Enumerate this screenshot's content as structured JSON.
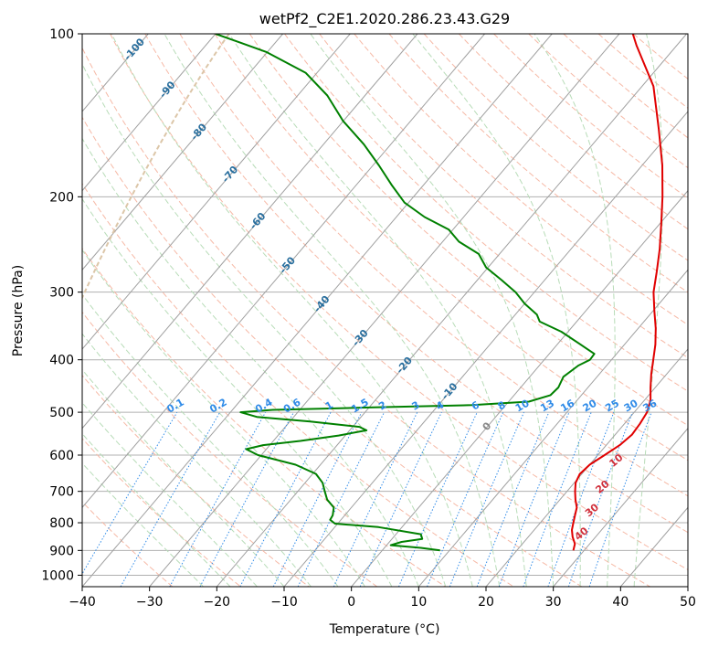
{
  "chart_data": {
    "type": "line",
    "subtype": "skew-T log-P diagram",
    "title": "wetPf2_C2E1.2020.286.23.43.G29",
    "xlabel": "Temperature (°C)",
    "ylabel": "Pressure (hPa)",
    "xlim": [
      -40,
      50
    ],
    "ylim": [
      1050,
      100
    ],
    "yscale": "log",
    "x_ticks": [
      -40,
      -30,
      -20,
      -10,
      0,
      10,
      20,
      30,
      40,
      50
    ],
    "y_ticks": [
      100,
      200,
      300,
      400,
      500,
      600,
      700,
      800,
      900,
      1000
    ],
    "grid": true,
    "colors": {
      "temperature": "#e00000",
      "dewpoint": "#008000",
      "isotherm": "#a0a0a0",
      "dry_adiabat": "#f6b9a6",
      "moist_adiabat": "#b8dcb8",
      "mixing_ratio": "#2f8be8",
      "dry_adiabat_label": "#d0303c",
      "isotherm_label": "#2a6f9e",
      "zero_label": "#888888",
      "rh_curve": "#dcc6a8"
    },
    "series": [
      {
        "key": "temperature",
        "points": [
          [
            28.4,
            900
          ],
          [
            27.8,
            875
          ],
          [
            26.6,
            850
          ],
          [
            25.6,
            825
          ],
          [
            24.9,
            800
          ],
          [
            24.2,
            775
          ],
          [
            23.5,
            750
          ],
          [
            22.3,
            725
          ],
          [
            21.2,
            700
          ],
          [
            20.2,
            675
          ],
          [
            19.7,
            650
          ],
          [
            20.0,
            625
          ],
          [
            21.0,
            600
          ],
          [
            22.0,
            575
          ],
          [
            22.5,
            550
          ],
          [
            22.3,
            525
          ],
          [
            21.9,
            500
          ],
          [
            20.9,
            475
          ],
          [
            19.3,
            450
          ],
          [
            17.7,
            425
          ],
          [
            16.2,
            400
          ],
          [
            14.6,
            375
          ],
          [
            12.6,
            350
          ],
          [
            10.2,
            325
          ],
          [
            7.7,
            300
          ],
          [
            5.6,
            275
          ],
          [
            3.2,
            250
          ],
          [
            0.3,
            225
          ],
          [
            -3.0,
            200
          ],
          [
            -7.0,
            175
          ],
          [
            -12.1,
            150
          ],
          [
            -18.3,
            125
          ],
          [
            -26.0,
            105
          ],
          [
            -28.0,
            100
          ]
        ]
      },
      {
        "key": "dewpoint",
        "points": [
          [
            8.6,
            900
          ],
          [
            5.4,
            890
          ],
          [
            0.6,
            880
          ],
          [
            1.8,
            868
          ],
          [
            4.5,
            857
          ],
          [
            3.7,
            840
          ],
          [
            -3.5,
            815
          ],
          [
            -10.4,
            803
          ],
          [
            -11.6,
            790
          ],
          [
            -11.8,
            775
          ],
          [
            -12.6,
            750
          ],
          [
            -14.6,
            725
          ],
          [
            -16.0,
            700
          ],
          [
            -17.4,
            675
          ],
          [
            -19.5,
            650
          ],
          [
            -23.7,
            625
          ],
          [
            -30.5,
            600
          ],
          [
            -33.0,
            585
          ],
          [
            -31.0,
            575
          ],
          [
            -26.0,
            565
          ],
          [
            -21.0,
            552
          ],
          [
            -17.5,
            540
          ],
          [
            -19.0,
            532
          ],
          [
            -27.0,
            520
          ],
          [
            -35.5,
            510
          ],
          [
            -38.5,
            500
          ],
          [
            -34.0,
            495
          ],
          [
            -20.0,
            490
          ],
          [
            -5.0,
            485
          ],
          [
            3.0,
            478
          ],
          [
            5.4,
            465
          ],
          [
            5.6,
            450
          ],
          [
            5.0,
            430
          ],
          [
            5.8,
            410
          ],
          [
            6.8,
            400
          ],
          [
            6.7,
            390
          ],
          [
            3.5,
            375
          ],
          [
            -1.0,
            355
          ],
          [
            -5.5,
            340
          ],
          [
            -6.8,
            330
          ],
          [
            -10.0,
            315
          ],
          [
            -12.8,
            300
          ],
          [
            -16.4,
            285
          ],
          [
            -20.3,
            270
          ],
          [
            -23.1,
            255
          ],
          [
            -27.6,
            242
          ],
          [
            -30.6,
            230
          ],
          [
            -35.8,
            218
          ],
          [
            -40.6,
            205
          ],
          [
            -44.8,
            190
          ],
          [
            -49.1,
            175
          ],
          [
            -54.0,
            160
          ],
          [
            -60.0,
            145
          ],
          [
            -65.6,
            130
          ],
          [
            -71.7,
            118
          ],
          [
            -80.2,
            108
          ],
          [
            -85.0,
            104
          ],
          [
            -90.0,
            100
          ]
        ]
      }
    ],
    "isotherm_labels": [
      {
        "text": "-100",
        "t": -100,
        "p": 107
      },
      {
        "text": "-90",
        "t": -90,
        "p": 127
      },
      {
        "text": "-80",
        "t": -80,
        "p": 152
      },
      {
        "text": "-70",
        "t": -70,
        "p": 182
      },
      {
        "text": "-60",
        "t": -60,
        "p": 222
      },
      {
        "text": "-50",
        "t": -50,
        "p": 268
      },
      {
        "text": "-40",
        "t": -40,
        "p": 316
      },
      {
        "text": "-30",
        "t": -30,
        "p": 365
      },
      {
        "text": "-20",
        "t": -20,
        "p": 410
      },
      {
        "text": "-10",
        "t": -10,
        "p": 458
      },
      {
        "text": "0",
        "t": 0,
        "p": 532
      }
    ],
    "dry_adiabat_labels": [
      {
        "text": "10",
        "t": 23.5,
        "p": 615
      },
      {
        "text": "20",
        "t": 24.8,
        "p": 688
      },
      {
        "text": "30",
        "t": 26.2,
        "p": 760
      },
      {
        "text": "40",
        "t": 27.6,
        "p": 840
      }
    ],
    "mixing_ratio_labels": [
      "0.1",
      "0.2",
      "0.4",
      "0.6",
      "1",
      "1.5",
      "2",
      "3",
      "4",
      "6",
      "8",
      "10",
      "13",
      "16",
      "20",
      "25",
      "30",
      "36"
    ]
  }
}
